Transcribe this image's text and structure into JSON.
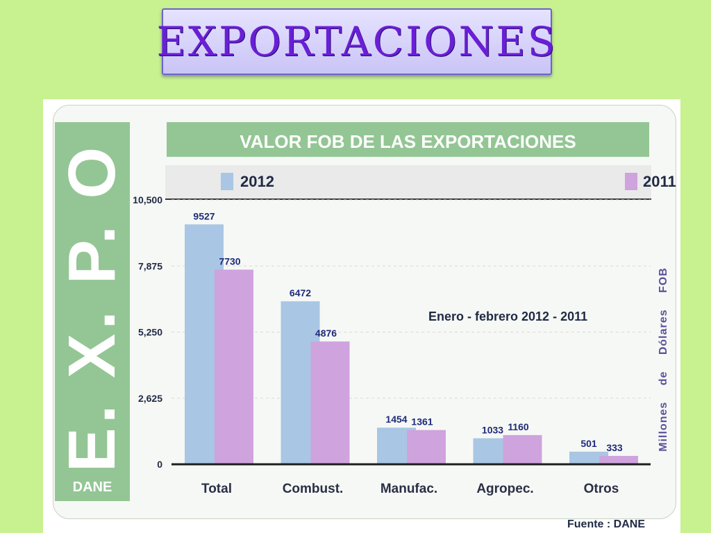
{
  "slide": {
    "title": "EXPORTACIONES"
  },
  "panel": {
    "vertical_label": "E. X. P. O",
    "dane_label": "DANE",
    "source": "Fuente : DANE"
  },
  "colors": {
    "background": "#c8f18f",
    "band_green": "#93c694",
    "series_2012": "#a9c6e4",
    "series_2011": "#cfa3de"
  },
  "chart_data": {
    "type": "bar",
    "title": "VALOR FOB DE LAS EXPORTACIONES",
    "ylabel": "Millones de Dólares FOB",
    "annotation": "Enero - febrero 2012 - 2011",
    "categories": [
      "Total",
      "Combust.",
      "Manufac.",
      "Agropec.",
      "Otros"
    ],
    "series": [
      {
        "name": "2012",
        "values": [
          9527,
          6472,
          1454,
          1033,
          501
        ]
      },
      {
        "name": "2011",
        "values": [
          7730,
          4876,
          1361,
          1160,
          333
        ]
      }
    ],
    "yticks": [
      "0",
      "2,625",
      "5,250",
      "7,875",
      "10,500"
    ],
    "ylim": [
      0,
      10500
    ],
    "grid": true,
    "legend_position": "top"
  }
}
